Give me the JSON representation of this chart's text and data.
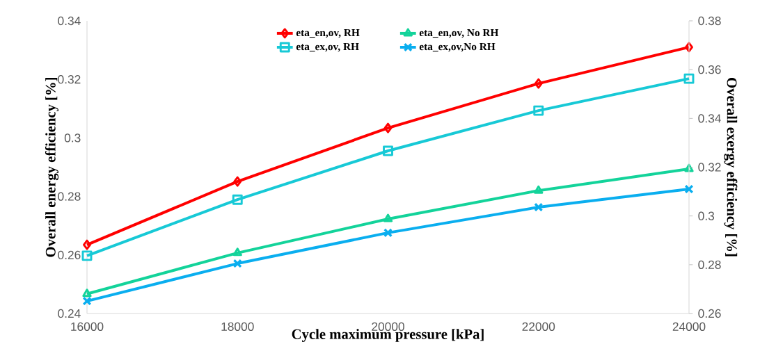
{
  "chart_data": {
    "type": "line",
    "xlabel": "Cycle maximum pressure [kPa]",
    "ylabel": "Overall energy efficiency [%]",
    "y2label": "Overall exergy efficiency [%]",
    "x": [
      16000,
      18000,
      20000,
      22000,
      24000
    ],
    "xlim": [
      16000,
      24000
    ],
    "xticks": [
      16000,
      18000,
      20000,
      22000,
      24000
    ],
    "ylim": [
      0.24,
      0.34
    ],
    "yticks": [
      0.24,
      0.26,
      0.28,
      0.3,
      0.32,
      0.34
    ],
    "y2lim": [
      0.26,
      0.38
    ],
    "y2ticks": [
      0.26,
      0.28,
      0.3,
      0.32,
      0.34,
      0.36,
      0.38
    ],
    "legend": "top",
    "grid": false,
    "line_style": "solid",
    "series": [
      {
        "name": "eta_en,ov, RH",
        "color": "#ff0000",
        "marker": "diamond",
        "values": [
          0.2635,
          0.2851,
          0.3034,
          0.3186,
          0.331
        ]
      },
      {
        "name": "eta_en,ov, No RH",
        "color": "#13d39a",
        "marker": "triangle",
        "values": [
          0.2467,
          0.2607,
          0.2723,
          0.282,
          0.2894
        ]
      },
      {
        "name": "eta_ex,ov, RH",
        "color": "#17c9d6",
        "marker": "square",
        "axis": "y2",
        "values": [
          0.2837,
          0.3067,
          0.3267,
          0.3432,
          0.3563
        ]
      },
      {
        "name": "eta_ex,ov,No RH",
        "color": "#0aaeef",
        "marker": "cross",
        "axis": "y2",
        "values": [
          0.2651,
          0.2805,
          0.2931,
          0.3036,
          0.311
        ]
      }
    ]
  }
}
